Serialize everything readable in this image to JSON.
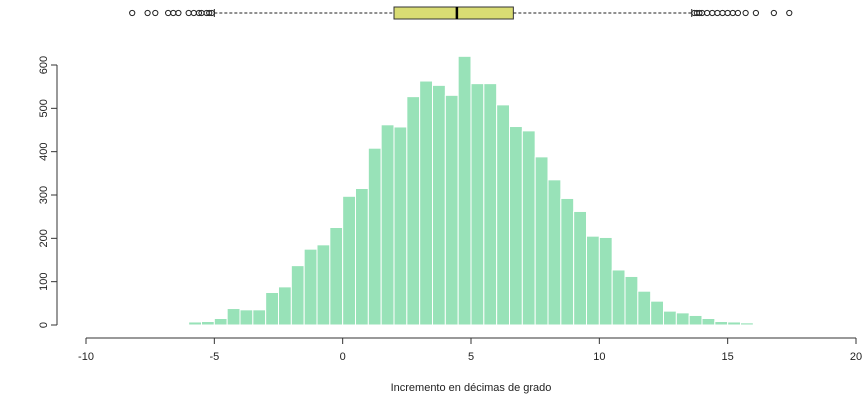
{
  "chart_data": {
    "type": "bar",
    "subtype": "histogram_with_boxplot",
    "xlabel": "Incremento en décimas de grado",
    "ylabel": "",
    "xlim": [
      -10,
      20
    ],
    "ylim": [
      0,
      650
    ],
    "x_ticks": [
      -10,
      -5,
      0,
      5,
      10,
      15,
      20
    ],
    "y_ticks": [
      0,
      100,
      200,
      300,
      400,
      500,
      600
    ],
    "bin_width": 0.5,
    "bin_start": -6.0,
    "values": [
      7,
      8,
      15,
      38,
      35,
      35,
      75,
      88,
      137,
      175,
      185,
      225,
      297,
      315,
      408,
      462,
      457,
      527,
      563,
      553,
      530,
      620,
      557,
      557,
      508,
      458,
      448,
      388,
      335,
      292,
      262,
      205,
      202,
      127,
      112,
      78,
      55,
      32,
      28,
      22,
      15,
      8,
      7,
      5
    ],
    "bar_color": "#98e2b8",
    "boxplot": {
      "q1": 2.0,
      "median": 4.45,
      "q3": 6.65,
      "whisker_low": -5.0,
      "whisker_high": 13.6,
      "box_color": "#d9dc73",
      "outliers": [
        -8.2,
        -7.6,
        -7.3,
        -6.8,
        -6.6,
        -6.4,
        -6.0,
        -5.8,
        -5.6,
        -5.5,
        -5.3,
        -5.2,
        -5.1,
        13.7,
        13.8,
        13.9,
        14.0,
        14.2,
        14.4,
        14.6,
        14.8,
        15.0,
        15.2,
        15.4,
        15.7,
        16.1,
        16.8,
        17.4
      ]
    }
  }
}
